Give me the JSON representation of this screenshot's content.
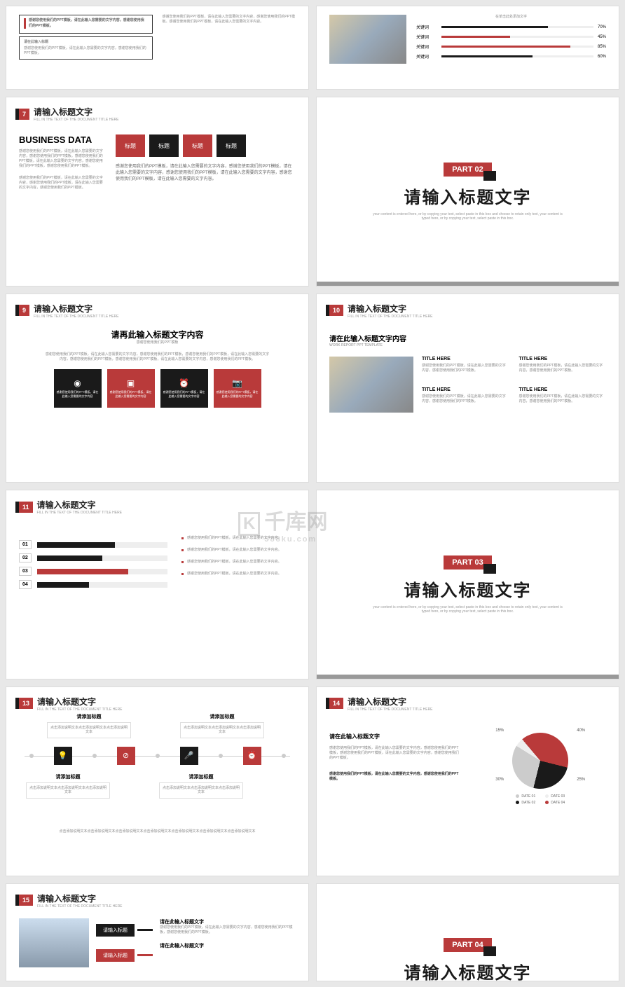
{
  "colors": {
    "red": "#b93a3a",
    "black": "#1a1a1a",
    "grey": "#999",
    "lgrey": "#eee"
  },
  "watermark": {
    "brand": "千库网",
    "domain": "588ku.com",
    "logo": "K"
  },
  "slides": {
    "s5": {
      "box1_title": "请在此输入标题",
      "box1_body": "感谢您使用我们的PPT模板，请在此输入您需要的文字内容，感谢您使用我们的PPT模板。",
      "box2_title": "请在此输入标题",
      "box2_body": "感谢您使用我们的PPT模板，请在此输入您需要的文字内容，感谢您使用我们的PPT模板。",
      "rbody": "感谢您使用我们的PPT模板，请在此输入您需要的文字内容，感谢您使用我们的PPT模板。感谢您使用我们的PPT模板，请在此输入您需要的文字内容。"
    },
    "s6": {
      "sub": "在单击此处添加文字",
      "kw": "关键词",
      "rows": [
        {
          "pct": 70,
          "color": "#1a1a1a"
        },
        {
          "pct": 45,
          "color": "#b93a3a"
        },
        {
          "pct": 85,
          "color": "#b93a3a"
        },
        {
          "pct": 60,
          "color": "#1a1a1a"
        }
      ]
    },
    "s7": {
      "num": "7",
      "title": "请输入标题文字",
      "sub": "FILL IN THE TEXT OF THE DOCUMENT TITLE HERE",
      "heading": "BUSINESS DATA",
      "lbody": "感谢您使用我们的PPT模板，请在此输入您需要的文字内容，感谢您使用我们的PPT模板。感谢您使用我们的PPT模板，请在此输入您需要的文字内容，感谢您使用我们的PPT模板，感谢您使用我们的PPT模板。",
      "lbody2": "感谢您使用我们的PPT模板，请在此输入您需要的文字内容，感谢您使用我们的PPT模板，请在此输入您需要的文字内容，感谢您使用我们的PPT模板。",
      "tabs": [
        {
          "t": "标题",
          "c": "red"
        },
        {
          "t": "标题",
          "c": "blk"
        },
        {
          "t": "标题",
          "c": "red"
        },
        {
          "t": "标题",
          "c": "blk"
        }
      ],
      "rbody": "感谢您使用我们的PPT模板，请在此输入您需要的文字内容，感谢您使用我们的PPT模板，请在此输入您需要的文字内容，感谢您使用我们的PPT模板，请在此输入您需要的文字内容，感谢您使用我们的PPT模板，请在此输入您需要的文字内容。"
    },
    "p2": {
      "label": "PART 02",
      "title": "请输入标题文字",
      "sub": "your content is entered here, or by copying your text, select paste in this box and choose to retain only text, your content is typed here, or by copying your text, select paste in this box."
    },
    "s9": {
      "num": "9",
      "title": "请输入标题文字",
      "sub": "FILL IN THE TEXT OF THE DOCUMENT TITLE HERE",
      "heading": "请再此输入标题文字内容",
      "hsub": "感谢您使用我们的PPT模板",
      "body": "感谢您使用我们的PPT模板，请在此输入您需要的文字内容，感谢您使用我们的PPT模板，感谢您使用我们的PPT模板，请在此输入您需要的文字内容，感谢您使用我们的PPT模板，感谢您使用我们的PPT模板，请在此输入您需要的文字内容，感谢您使用我们的PPT模板。",
      "boxes": [
        {
          "c": "blk",
          "icon": "◉",
          "t": "感谢您使用我们的PPT模板，请在此输入您需要的文字内容"
        },
        {
          "c": "red",
          "icon": "▣",
          "t": "感谢您使用我们的PPT模板，请在此输入您需要的文字内容"
        },
        {
          "c": "blk",
          "icon": "⏰",
          "t": "感谢您使用我们的PPT模板，请在此输入您需要的文字内容"
        },
        {
          "c": "red",
          "icon": "📷",
          "t": "感谢您使用我们的PPT模板，请在此输入您需要的文字内容"
        }
      ]
    },
    "s10": {
      "num": "10",
      "title": "请输入标题文字",
      "sub": "FILL IN THE TEXT OF THE DOCUMENT TITLE HERE",
      "heading": "请在此输入标题文字内容",
      "hsub": "WORK REPORT PPT TEMPLATE",
      "cols": [
        {
          "t": "TITLE HERE",
          "b": "感谢您使用我们的PPT模板，请在此输入您需要的文字内容，感谢您使用我们的PPT模板。"
        },
        {
          "t": "TITLE HERE",
          "b": "感谢您使用我们的PPT模板，请在此输入您需要的文字内容，感谢您使用我们的PPT模板。"
        },
        {
          "t": "TITLE HERE",
          "b": "感谢您使用我们的PPT模板，请在此输入您需要的文字内容，感谢您使用我们的PPT模板。"
        },
        {
          "t": "TITLE HERE",
          "b": "感谢您使用我们的PPT模板，请在此输入您需要的文字内容，感谢您使用我们的PPT模板。"
        }
      ]
    },
    "s11": {
      "num": "11",
      "title": "请输入标题文字",
      "sub": "FILL IN THE TEXT OF THE DOCUMENT TITLE HERE",
      "bars": [
        {
          "n": "01",
          "pct": 60,
          "c": "#1a1a1a"
        },
        {
          "n": "02",
          "pct": 50,
          "c": "#1a1a1a"
        },
        {
          "n": "03",
          "pct": 70,
          "c": "#b93a3a"
        },
        {
          "n": "04",
          "pct": 40,
          "c": "#1a1a1a"
        }
      ],
      "items": [
        "感谢您使用我们的PPT模板，请在此输入您需要的文字内容。",
        "感谢您使用我们的PPT模板，请在此输入您需要的文字内容。",
        "感谢您使用我们的PPT模板，请在此输入您需要的文字内容。",
        "感谢您使用我们的PPT模板，请在此输入您需要的文字内容。"
      ]
    },
    "p3": {
      "label": "PART 03",
      "title": "请输入标题文字",
      "sub": "your content is entered here, or by copying your text, select paste in this box and choose to retain only text, your content is typed here, or by copying your text, select paste in this box."
    },
    "s13": {
      "num": "13",
      "title": "请输入标题文字",
      "sub": "FILL IN THE TEXT OF THE DOCUMENT TITLE HERE",
      "nodes": [
        {
          "pos": "top",
          "title": "请添加标题",
          "body": "点击添加说明文本点击添加说明文本点击添加说明文本",
          "icon": "💡",
          "c": "blk"
        },
        {
          "pos": "top",
          "title": "请添加标题",
          "body": "点击添加说明文本点击添加说明文本点击添加说明文本",
          "icon": "⊘",
          "c": "red"
        },
        {
          "pos": "bot",
          "title": "请添加标题",
          "body": "点击添加说明文本点击添加说明文本点击添加说明文本",
          "icon": "🎤",
          "c": "blk"
        },
        {
          "pos": "bot",
          "title": "请添加标题",
          "body": "点击添加说明文本点击添加说明文本点击添加说明文本",
          "icon": "⏰",
          "c": "red"
        }
      ],
      "footer": "点击添加说明文本点击添加说明文本点击添加说明文本点击添加说明文本点击添加说明文本点击添加说明文本点击添加说明文本"
    },
    "s14": {
      "num": "14",
      "title": "请输入标题文字",
      "sub": "FILL IN THE TEXT OF THE DOCUMENT TITLE HERE",
      "heading": "请在此输入标题文字",
      "body": "感谢您使用我们的PPT模板，请在此输入您需要的文字内容，感谢您使用我们的PPT模板，感谢您使用我们的PPT模板，请在此输入您需要的文字内容，感谢您使用我们的PPT模板。",
      "bold": "感谢您使用我们的PPT模板，请在此输入您需要的文字内容，感谢您使用我们的PPT模板。",
      "pie": [
        {
          "pct": 40,
          "c": "#b93a3a",
          "lbl": "40%"
        },
        {
          "pct": 25,
          "c": "#1a1a1a",
          "lbl": "25%"
        },
        {
          "pct": 30,
          "c": "#ccc",
          "lbl": "30%"
        },
        {
          "pct": 15,
          "c": "#eee",
          "lbl": "15%"
        }
      ],
      "legend": [
        {
          "t": "DATE 01",
          "c": "#ccc"
        },
        {
          "t": "DATE 03",
          "c": "#eee"
        },
        {
          "t": "DATE 02",
          "c": "#1a1a1a"
        },
        {
          "t": "DATE 04",
          "c": "#b93a3a"
        }
      ]
    },
    "s15": {
      "num": "15",
      "title": "请输入标题文字",
      "sub": "FILL IN THE TEXT OF THE DOCUMENT TITLE HERE",
      "tags": [
        {
          "t": "请输入标题",
          "c": "blk"
        },
        {
          "t": "请输入标题",
          "c": "red"
        }
      ],
      "texts": [
        {
          "t": "请在此输入标题文字",
          "b": "感谢您使用我们的PPT模板，请在此输入您需要的文字内容，感谢您使用我们的PPT模板，感谢您使用我们的PPT模板。"
        },
        {
          "t": "请在此输入标题文字",
          "b": ""
        }
      ]
    },
    "p4": {
      "label": "PART 04",
      "title": "请输入标题文字"
    }
  }
}
